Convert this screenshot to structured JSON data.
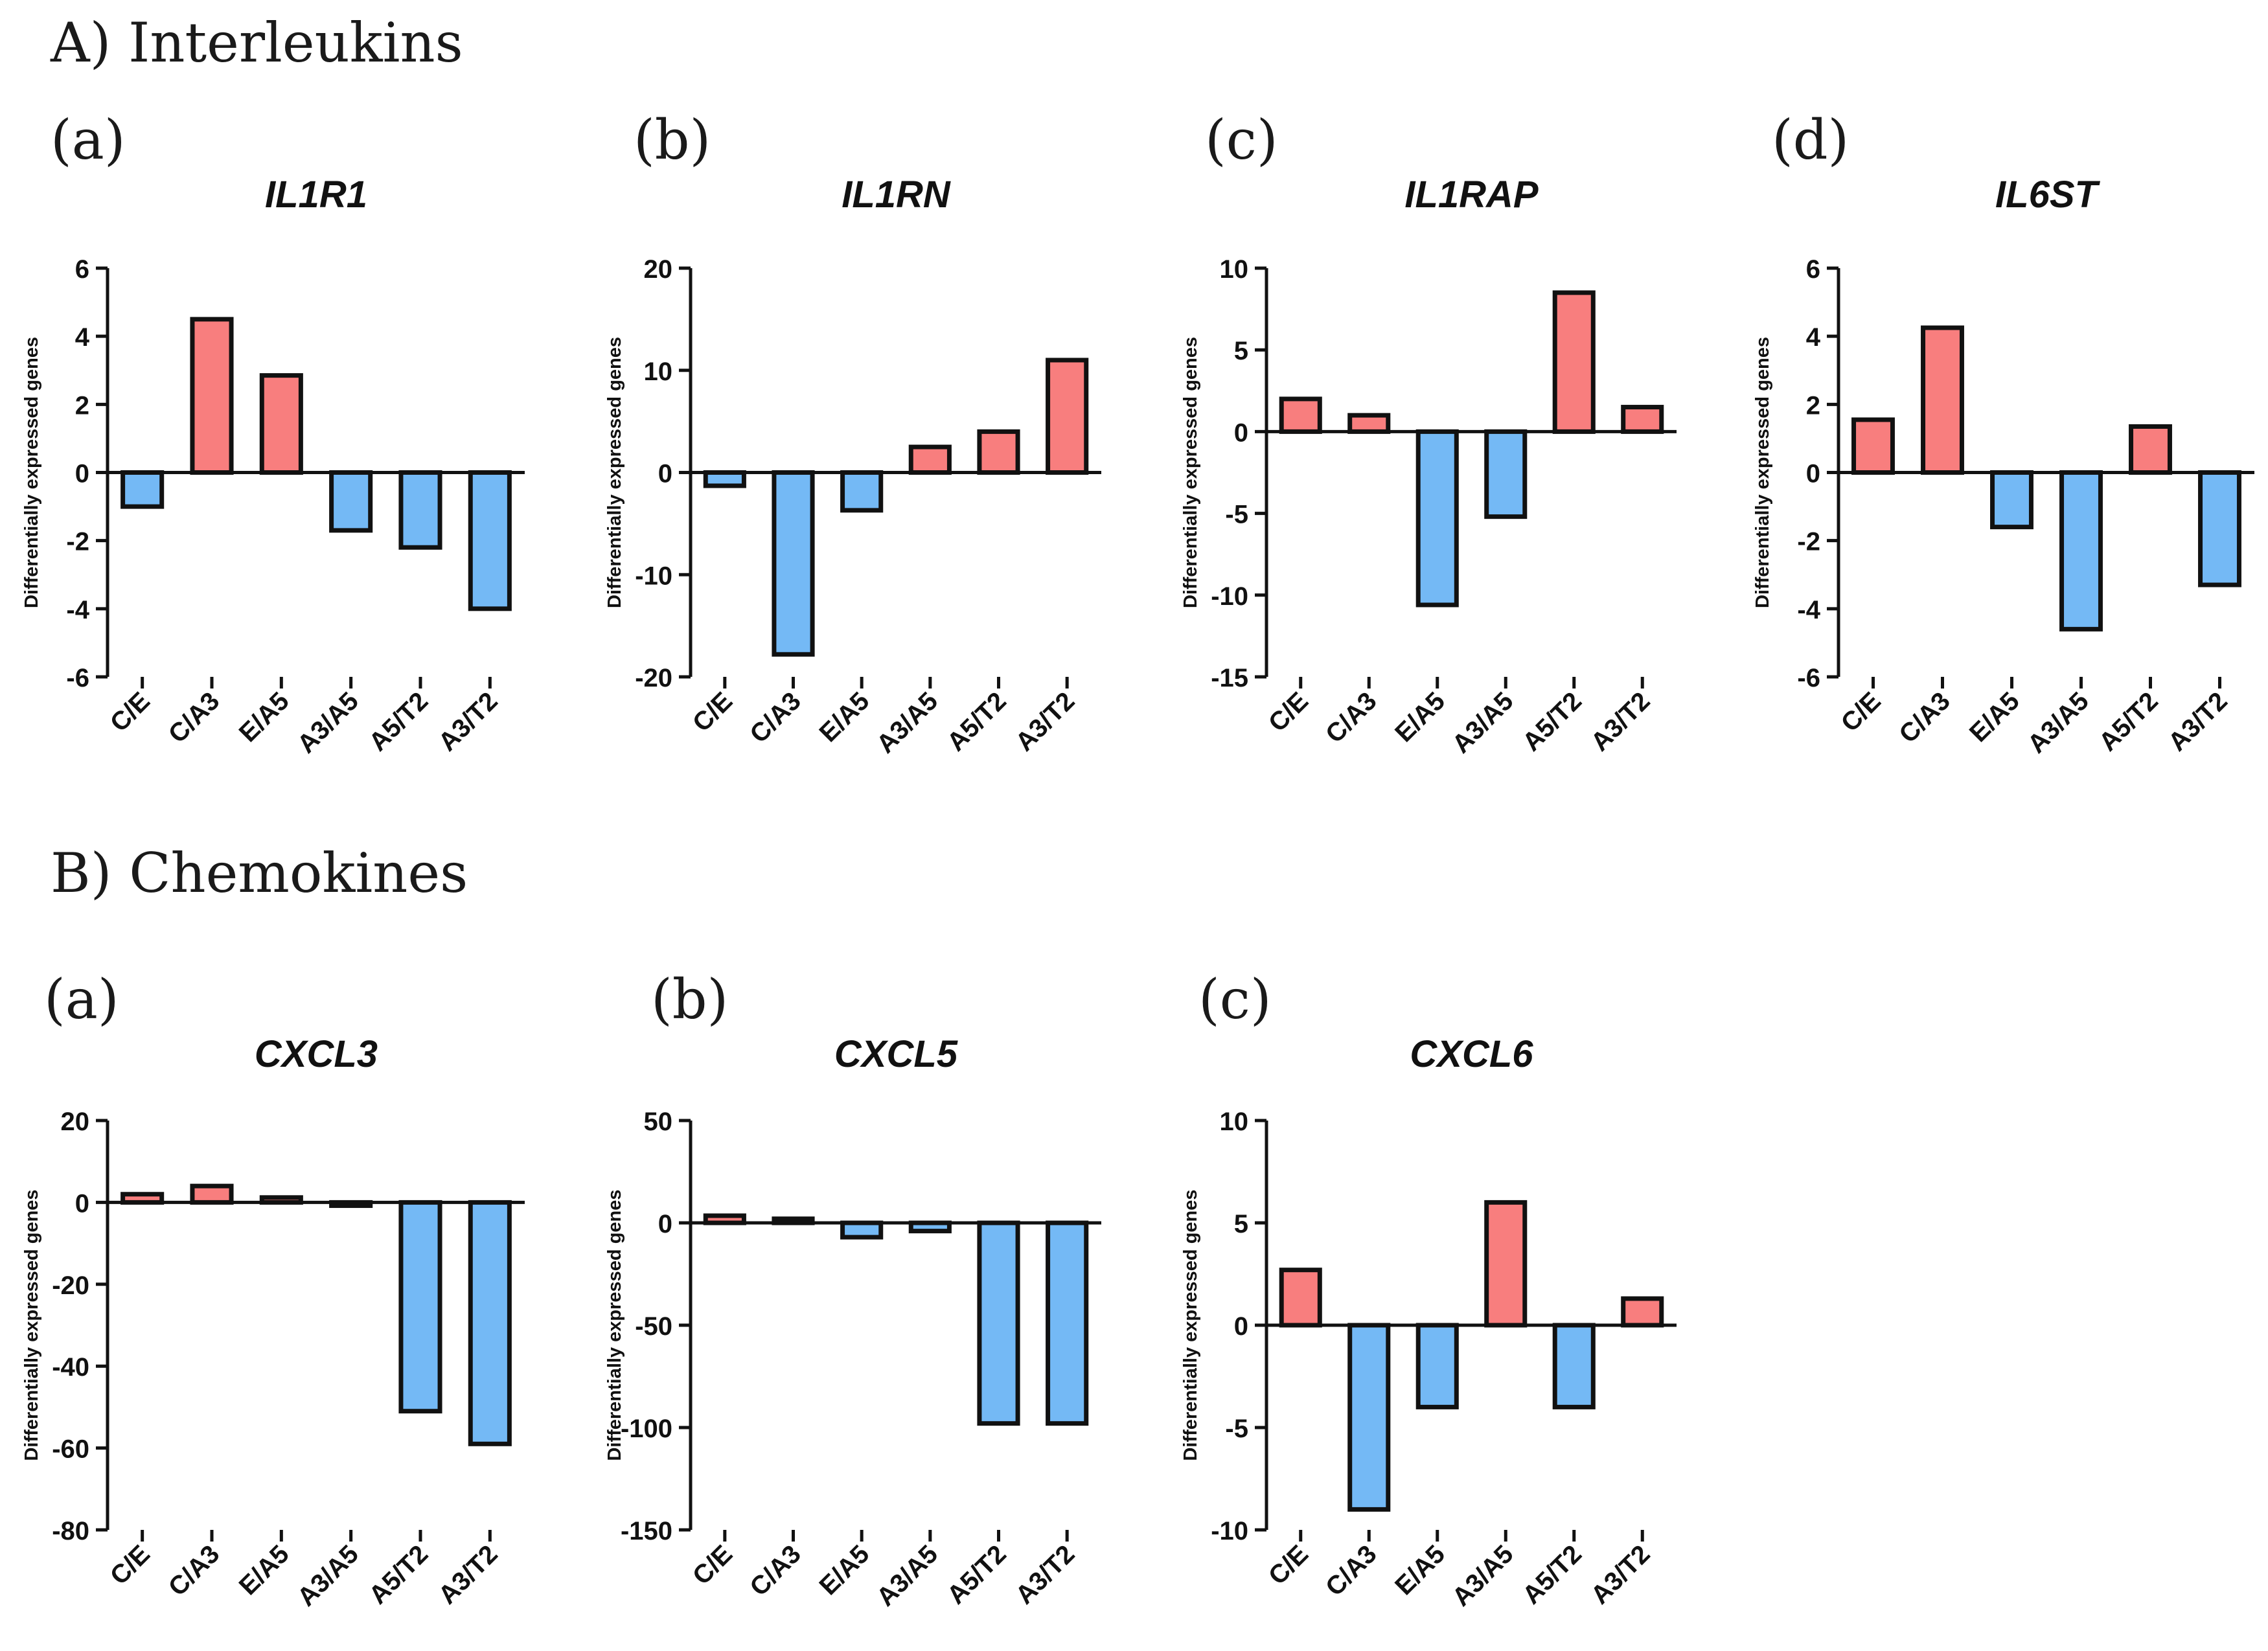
{
  "sections": [
    {
      "title": "A) Interleukins"
    },
    {
      "title": "B) Chemokines"
    }
  ],
  "colors": {
    "positive": "#f87e7e",
    "negative": "#74b9f5",
    "stroke": "#111111"
  },
  "chart_data": [
    {
      "type": "bar",
      "section": 0,
      "panel": "(a)",
      "title": "IL1R1",
      "ylabel": "Differentially expressed genes",
      "categories": [
        "C/E",
        "C/A3",
        "E/A5",
        "A3/A5",
        "A5/T2",
        "A3/T2"
      ],
      "values": [
        -1.0,
        4.5,
        2.85,
        -1.7,
        -2.2,
        -4.0
      ],
      "ylim": [
        -6,
        6
      ],
      "yticks": [
        6,
        4,
        2,
        0,
        -2,
        -4,
        -6
      ]
    },
    {
      "type": "bar",
      "section": 0,
      "panel": "(b)",
      "title": "IL1RN",
      "ylabel": "Differentially expressed genes",
      "categories": [
        "C/E",
        "C/A3",
        "E/A5",
        "A3/A5",
        "A5/T2",
        "A3/T2"
      ],
      "values": [
        -1.3,
        -17.8,
        -3.7,
        2.5,
        4.0,
        11.0
      ],
      "ylim": [
        -20,
        20
      ],
      "yticks": [
        20,
        10,
        0,
        -10,
        -20
      ]
    },
    {
      "type": "bar",
      "section": 0,
      "panel": "(c)",
      "title": "IL1RAP",
      "ylabel": "Differentially expressed genes",
      "categories": [
        "C/E",
        "C/A3",
        "E/A5",
        "A3/A5",
        "A5/T2",
        "A3/T2"
      ],
      "values": [
        2.0,
        1.0,
        -10.6,
        -5.2,
        8.5,
        1.5
      ],
      "ylim": [
        -15,
        10
      ],
      "yticks": [
        10,
        5,
        0,
        -5,
        -10,
        -15
      ]
    },
    {
      "type": "bar",
      "section": 0,
      "panel": "(d)",
      "title": "IL6ST",
      "ylabel": "Differentially expressed genes",
      "categories": [
        "C/E",
        "C/A3",
        "E/A5",
        "A3/A5",
        "A5/T2",
        "A3/T2"
      ],
      "values": [
        1.55,
        4.25,
        -1.6,
        -4.6,
        1.35,
        -3.3
      ],
      "ylim": [
        -6,
        6
      ],
      "yticks": [
        6,
        4,
        2,
        0,
        -2,
        -4,
        -6
      ]
    },
    {
      "type": "bar",
      "section": 1,
      "panel": "(a)",
      "title": "CXCL3",
      "ylabel": "Differentially expressed genes",
      "categories": [
        "C/E",
        "C/A3",
        "E/A5",
        "A3/A5",
        "A5/T2",
        "A3/T2"
      ],
      "values": [
        2.0,
        4.0,
        1.2,
        -0.8,
        -51.0,
        -59.0
      ],
      "ylim": [
        -80,
        20
      ],
      "yticks": [
        20,
        0,
        -20,
        -40,
        -60,
        -80
      ]
    },
    {
      "type": "bar",
      "section": 1,
      "panel": "(b)",
      "title": "CXCL5",
      "ylabel": "Differentially expressed genes",
      "categories": [
        "C/E",
        "C/A3",
        "E/A5",
        "A3/A5",
        "A5/T2",
        "A3/T2"
      ],
      "values": [
        3.5,
        2.0,
        -7.0,
        -4.0,
        -98.0,
        -98.0
      ],
      "ylim": [
        -150,
        50
      ],
      "yticks": [
        50,
        0,
        -50,
        -100,
        -150
      ]
    },
    {
      "type": "bar",
      "section": 1,
      "panel": "(c)",
      "title": "CXCL6",
      "ylabel": "Differentially expressed genes",
      "categories": [
        "C/E",
        "C/A3",
        "E/A5",
        "A3/A5",
        "A5/T2",
        "A3/T2"
      ],
      "values": [
        2.7,
        -9.0,
        -4.0,
        6.0,
        -4.0,
        1.3
      ],
      "ylim": [
        -10,
        10
      ],
      "yticks": [
        10,
        5,
        0,
        -5,
        -10
      ]
    }
  ]
}
